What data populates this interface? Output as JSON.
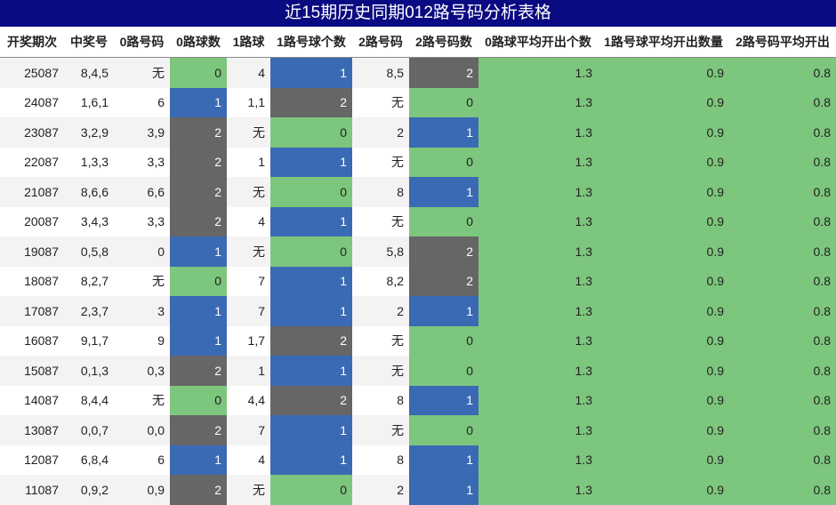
{
  "title": "近15期历史同期012路号码分析表格",
  "table": {
    "headers": [
      "开奖期次",
      "中奖号",
      "0路号码",
      "0路球数",
      "1路球",
      "1路号球个数",
      "2路号码",
      "2路号码数",
      "0路球平均开出个数",
      "1路号球平均开出数量",
      "2路号码平均开出"
    ],
    "rows": [
      [
        "25087",
        "8,4,5",
        "无",
        0,
        "4",
        1,
        "8,5",
        2,
        1.3,
        0.9,
        0.8
      ],
      [
        "24087",
        "1,6,1",
        "6",
        1,
        "1,1",
        2,
        "无",
        0,
        1.3,
        0.9,
        0.8
      ],
      [
        "23087",
        "3,2,9",
        "3,9",
        2,
        "无",
        0,
        "2",
        1,
        1.3,
        0.9,
        0.8
      ],
      [
        "22087",
        "1,3,3",
        "3,3",
        2,
        "1",
        1,
        "无",
        0,
        1.3,
        0.9,
        0.8
      ],
      [
        "21087",
        "8,6,6",
        "6,6",
        2,
        "无",
        0,
        "8",
        1,
        1.3,
        0.9,
        0.8
      ],
      [
        "20087",
        "3,4,3",
        "3,3",
        2,
        "4",
        1,
        "无",
        0,
        1.3,
        0.9,
        0.8
      ],
      [
        "19087",
        "0,5,8",
        "0",
        1,
        "无",
        0,
        "5,8",
        2,
        1.3,
        0.9,
        0.8
      ],
      [
        "18087",
        "8,2,7",
        "无",
        0,
        "7",
        1,
        "8,2",
        2,
        1.3,
        0.9,
        0.8
      ],
      [
        "17087",
        "2,3,7",
        "3",
        1,
        "7",
        1,
        "2",
        1,
        1.3,
        0.9,
        0.8
      ],
      [
        "16087",
        "9,1,7",
        "9",
        1,
        "1,7",
        2,
        "无",
        0,
        1.3,
        0.9,
        0.8
      ],
      [
        "15087",
        "0,1,3",
        "0,3",
        2,
        "1",
        1,
        "无",
        0,
        1.3,
        0.9,
        0.8
      ],
      [
        "14087",
        "8,4,4",
        "无",
        0,
        "4,4",
        2,
        "8",
        1,
        1.3,
        0.9,
        0.8
      ],
      [
        "13087",
        "0,0,7",
        "0,0",
        2,
        "7",
        1,
        "无",
        0,
        1.3,
        0.9,
        0.8
      ],
      [
        "12087",
        "6,8,4",
        "6",
        1,
        "4",
        1,
        "8",
        1,
        1.3,
        0.9,
        0.8
      ],
      [
        "11087",
        "0,9,2",
        "0,9",
        2,
        "无",
        0,
        "2",
        1,
        1.3,
        0.9,
        0.8
      ]
    ]
  }
}
